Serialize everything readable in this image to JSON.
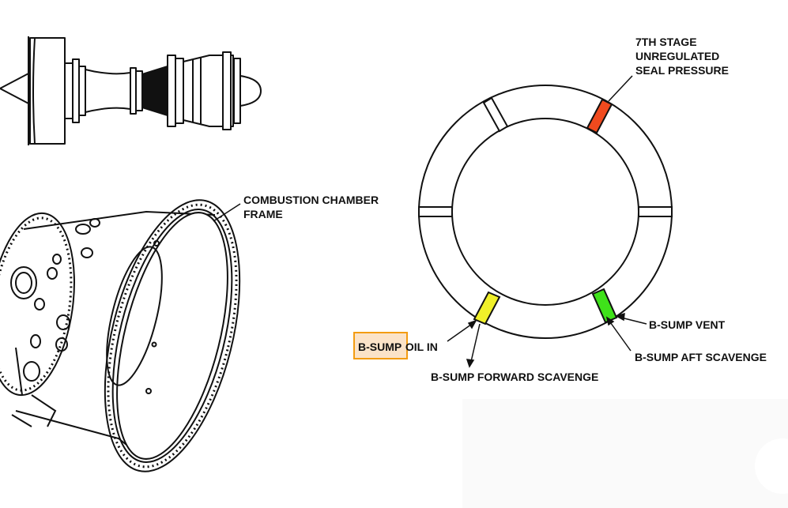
{
  "labels": {
    "seal_pressure": [
      "7TH STAGE",
      "UNREGULATED",
      "SEAL PRESSURE"
    ],
    "frame": [
      "COMBUSTION CHAMBER",
      "FRAME"
    ],
    "sump_vent": "B-SUMP VENT",
    "sump_aft_scavenge": "B-SUMP AFT SCAVENGE",
    "sump_forward_scavenge": "B-SUMP FORWARD SCAVENGE",
    "oil_in_highlight": "B-SUMP",
    "oil_in_rest": "OIL IN"
  },
  "colors": {
    "seal_pressure_port": "#f04a1e",
    "forward_scavenge_port": "#f0f02a",
    "vent_aft_port": "#3fe21a",
    "highlight_fill": "#fbe3c8",
    "highlight_border": "#f39c12",
    "line": "#111111"
  },
  "icons": [
    "jet-engine-icon",
    "combustion-frame-icon",
    "sump-ring-icon"
  ]
}
